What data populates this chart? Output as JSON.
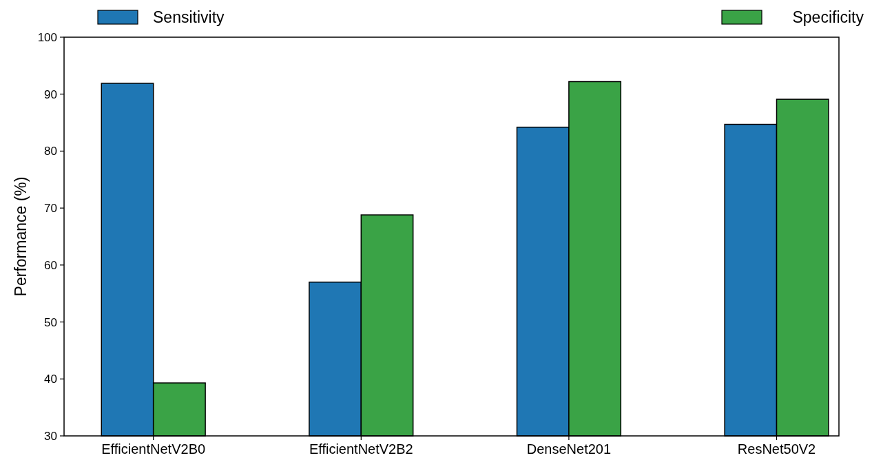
{
  "chart_data": {
    "type": "bar",
    "ylabel": "Performance (%)",
    "categories": [
      "EfficientNetV2B0",
      "EfficientNetV2B2",
      "DenseNet201",
      "ResNet50V2"
    ],
    "series": [
      {
        "name": "Sensitivity",
        "color": "#1f77b4",
        "values": [
          91.9,
          57.0,
          84.2,
          84.7
        ]
      },
      {
        "name": "Specificity",
        "color": "#3aa346",
        "values": [
          39.3,
          68.8,
          92.2,
          89.1
        ]
      }
    ],
    "ylim": [
      30,
      100
    ],
    "yticks": [
      30,
      40,
      50,
      60,
      70,
      80,
      90,
      100
    ],
    "grid": false,
    "legend": "top"
  }
}
